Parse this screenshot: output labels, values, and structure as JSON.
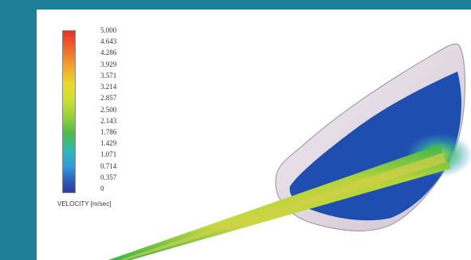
{
  "legend": {
    "label": "VELOCITY [m/sec]",
    "ticks": [
      "5.000",
      "4.643",
      "4.286",
      "3.929",
      "3.571",
      "3.214",
      "2.857",
      "2.500",
      "2.143",
      "1.786",
      "1.429",
      "1.071",
      "0.714",
      "0.357",
      "0"
    ],
    "colors": {
      "max": "#e8302a",
      "mid": "#eed62a",
      "low": "#2fb9b4",
      "min": "#2a3f9f"
    }
  },
  "scene": {
    "vessel_fill": "#1e4fb0",
    "vessel_wall": "#e7dde6",
    "jet_color": "#c9d840",
    "jet_edge": "#39b54a"
  }
}
